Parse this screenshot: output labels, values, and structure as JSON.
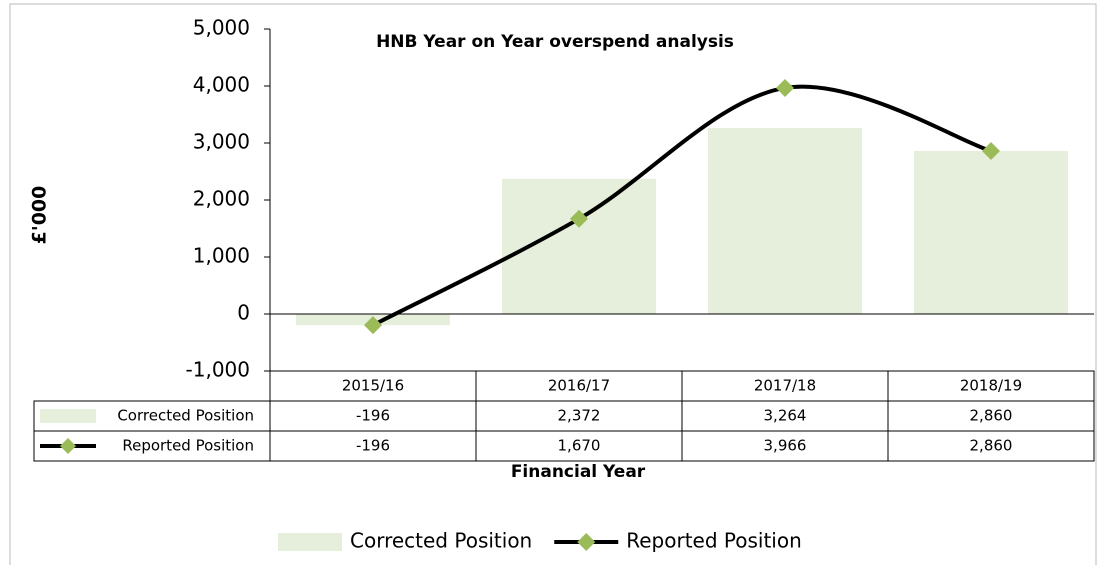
{
  "chart_data": {
    "type": "combo",
    "title": "HNB Year on Year overspend analysis",
    "x_label": "Financial Year",
    "y_label": "£'000",
    "categories": [
      "2015/16",
      "2016/17",
      "2017/18",
      "2018/19"
    ],
    "series": [
      {
        "name": "Corrected Position",
        "type": "bar",
        "color": "#e6eedc",
        "values": [
          -196,
          2372,
          3264,
          2860
        ],
        "value_labels": [
          "-196",
          "2,372",
          "3,264",
          "2,860"
        ]
      },
      {
        "name": "Reported Position",
        "type": "line",
        "smooth": true,
        "color": "#000000",
        "marker_color": "#9bbb59",
        "values": [
          -196,
          1670,
          3966,
          2860
        ],
        "value_labels": [
          "-196",
          "1,670",
          "3,966",
          "2,860"
        ]
      }
    ],
    "ylim": [
      -1000,
      5000
    ],
    "yticks": [
      {
        "value": -1000,
        "label": "-1,000"
      },
      0,
      {
        "value": 1000,
        "label": "1,000"
      },
      {
        "value": 2000,
        "label": "2,000"
      },
      {
        "value": 3000,
        "label": "3,000"
      },
      {
        "value": 4000,
        "label": "4,000"
      },
      {
        "value": 5000,
        "label": "5,000"
      }
    ],
    "legend": "bottom",
    "data_table": true
  }
}
